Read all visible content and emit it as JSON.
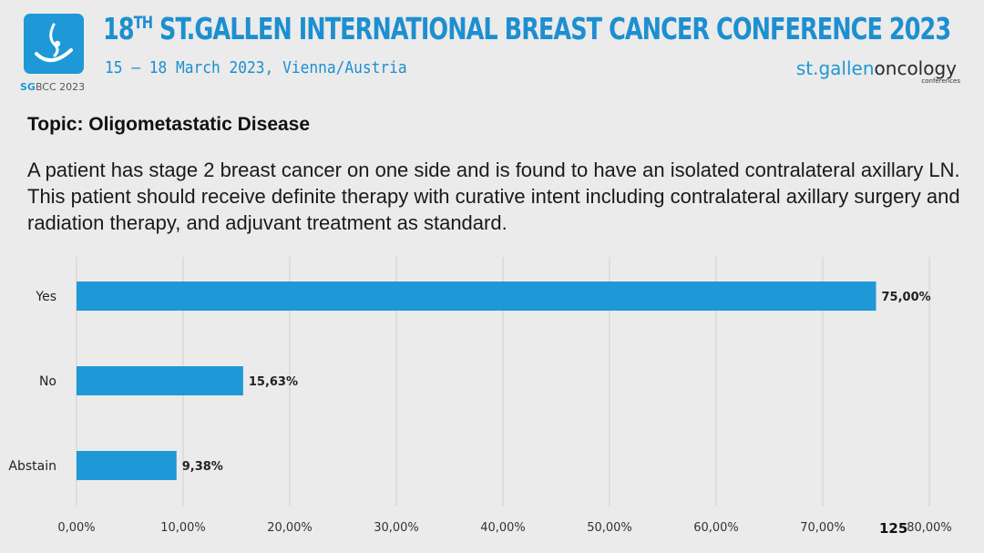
{
  "header": {
    "title_main": "18",
    "title_sup": "TH",
    "title_rest": " ST.GALLEN INTERNATIONAL BREAST CANCER CONFERENCE 2023",
    "dates": "15 – 18 March 2023, Vienna/Austria",
    "logo_caption_sg": "SG",
    "logo_caption_rest": "BCC 2023",
    "brand_part1": "st.gallen",
    "brand_part2": "oncology",
    "brand_sub": "conferences"
  },
  "slide": {
    "topic": "Topic: Oligometastatic Disease",
    "question": "A patient has stage 2 breast cancer on one side and is found to have an isolated contralateral axillary LN. This patient should receive definite therapy with curative intent including contralateral axillary surgery and radiation therapy, and adjuvant treatment as standard.",
    "page_number": "125"
  },
  "colors": {
    "bar": "#1e98d6",
    "title": "#1d8fd0",
    "grid": "#cfcfcf"
  },
  "chart_data": {
    "type": "bar",
    "orientation": "horizontal",
    "categories": [
      "Yes",
      "No",
      "Abstain"
    ],
    "values": [
      75.0,
      15.63,
      9.38
    ],
    "value_labels": [
      "75,00%",
      "15,63%",
      "9,38%"
    ],
    "x_ticks": [
      "0,00%",
      "10,00%",
      "20,00%",
      "30,00%",
      "40,00%",
      "50,00%",
      "60,00%",
      "70,00%",
      "80,00%"
    ],
    "xlim": [
      0,
      80
    ],
    "grid": true
  }
}
